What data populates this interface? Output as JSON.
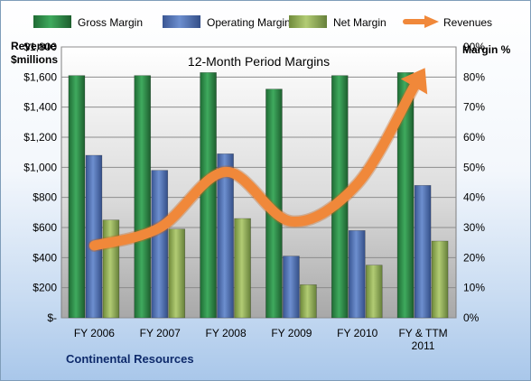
{
  "chart_data": {
    "type": "bar",
    "title": "12-Month Period Margins",
    "categories": [
      [
        "FY 2006"
      ],
      [
        "FY 2007"
      ],
      [
        "FY 2008"
      ],
      [
        "FY 2009"
      ],
      [
        "FY 2010"
      ],
      [
        "FY & TTM",
        "2011"
      ]
    ],
    "y_left": {
      "label_line1": "Revenue",
      "label_line2": "$millions",
      "min": 0,
      "max": 1800,
      "step": 200,
      "ticks": [
        "$-",
        "$200",
        "$400",
        "$600",
        "$800",
        "$1,000",
        "$1,200",
        "$1,400",
        "$1,600",
        "$1,800"
      ]
    },
    "y_right": {
      "label": "Margin %",
      "min": 0,
      "max": 90,
      "step": 10,
      "ticks": [
        "0%",
        "10%",
        "20%",
        "30%",
        "40%",
        "50%",
        "60%",
        "70%",
        "80%",
        "90%"
      ]
    },
    "series": [
      {
        "name": "Gross Margin",
        "axis": "right",
        "kind": "bar",
        "color": "#2e8b46",
        "values": [
          80.5,
          80.5,
          81.5,
          76,
          80.5,
          81.5
        ]
      },
      {
        "name": "Operating Margin",
        "axis": "right",
        "kind": "bar",
        "color": "#4f72b8",
        "values": [
          54,
          49,
          54.5,
          20.5,
          29,
          44
        ]
      },
      {
        "name": "Net Margin",
        "axis": "right",
        "kind": "bar",
        "color": "#96b255",
        "values": [
          32.5,
          29.5,
          33,
          11,
          17.5,
          25.5
        ]
      },
      {
        "name": "Revenues",
        "axis": "left",
        "kind": "line",
        "color": "#f0883a",
        "values": [
          480,
          600,
          970,
          640,
          890,
          1640
        ]
      }
    ],
    "grid": true,
    "legend": "top"
  },
  "footer": {
    "company": "Continental Resources"
  }
}
